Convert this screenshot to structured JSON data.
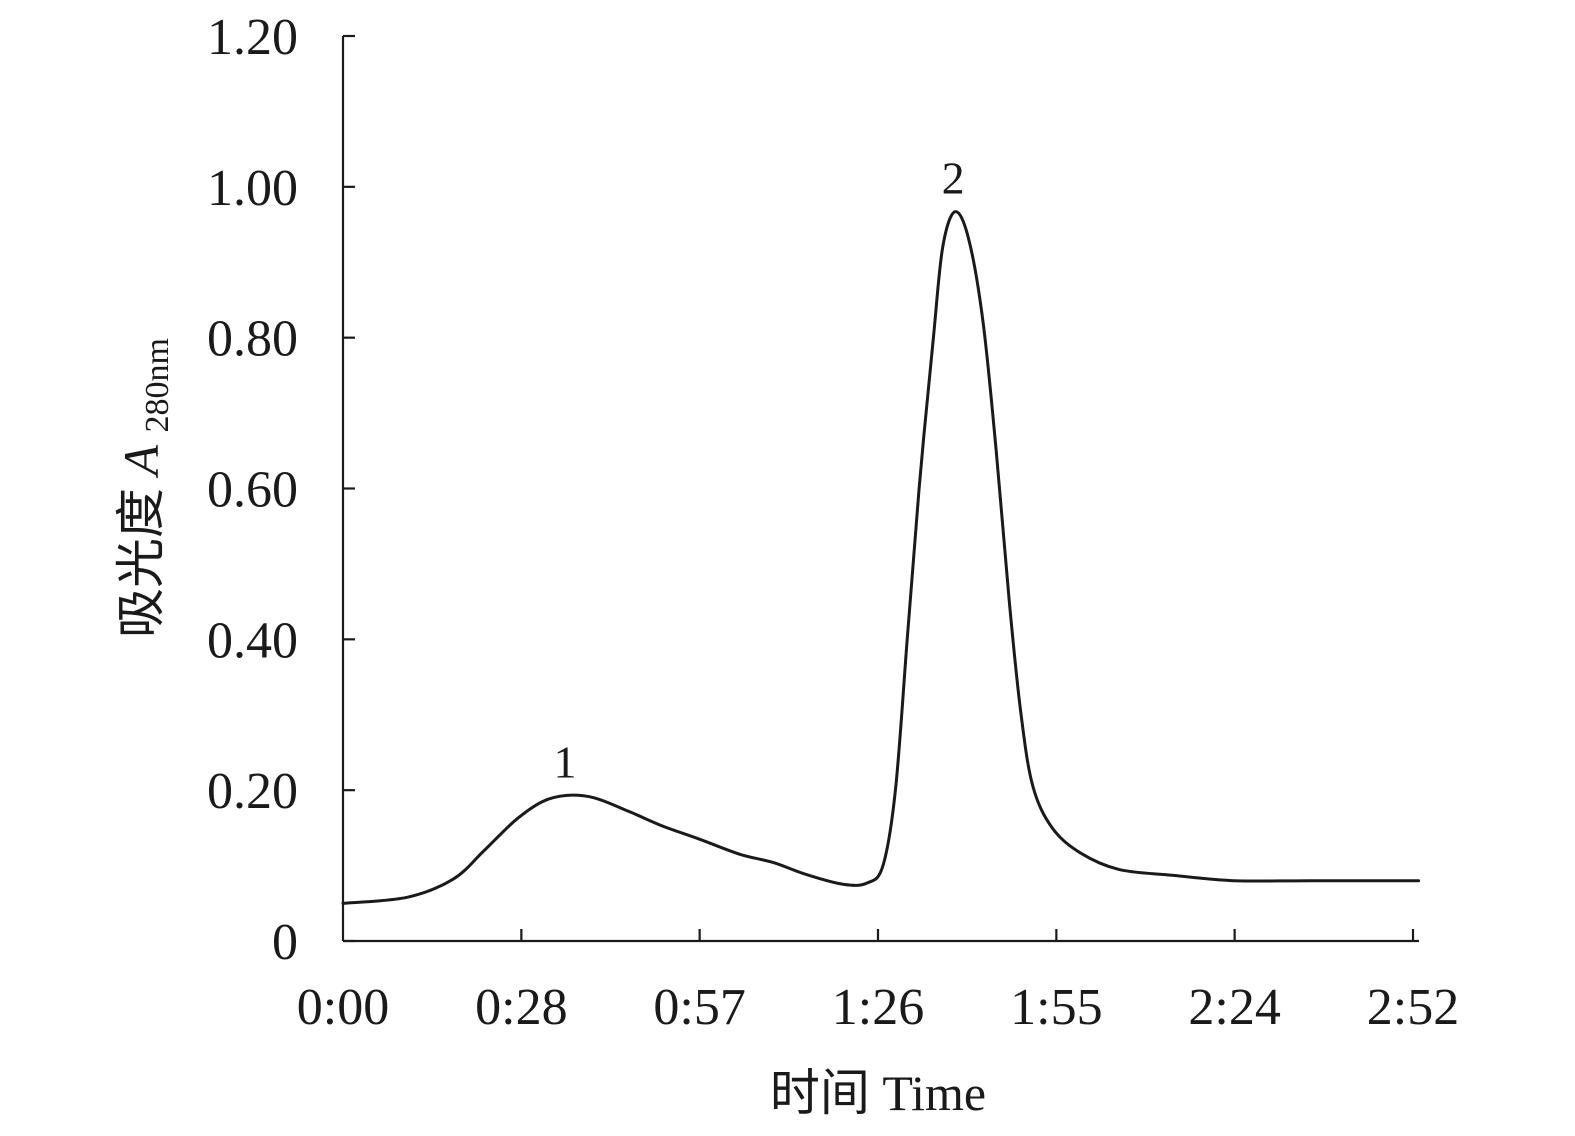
{
  "chart_data": {
    "type": "line",
    "title": "",
    "xlabel": "时间 Time",
    "ylabel": {
      "prefix": "吸光度 ",
      "symbol": "A",
      "subscript": "280nm"
    },
    "x_unit": "minutes",
    "xlim": [
      0,
      172
    ],
    "ylim": [
      0,
      1.2
    ],
    "x_ticks": [
      {
        "value": 0,
        "label": "0:00"
      },
      {
        "value": 28.67,
        "label": "0:28"
      },
      {
        "value": 57.33,
        "label": "0:57"
      },
      {
        "value": 86,
        "label": "1:26"
      },
      {
        "value": 114.67,
        "label": "1:55"
      },
      {
        "value": 143.33,
        "label": "2:24"
      },
      {
        "value": 172,
        "label": "2:52"
      }
    ],
    "y_ticks": [
      {
        "value": 0,
        "label": "0"
      },
      {
        "value": 0.2,
        "label": "0.20"
      },
      {
        "value": 0.4,
        "label": "0.40"
      },
      {
        "value": 0.6,
        "label": "0.60"
      },
      {
        "value": 0.8,
        "label": "0.80"
      },
      {
        "value": 1.0,
        "label": "1.00"
      },
      {
        "value": 1.2,
        "label": "1.20"
      }
    ],
    "grid": false,
    "legend": "none",
    "series": [
      {
        "points": [
          [
            0,
            0.05
          ],
          [
            10.3,
            0.058
          ],
          [
            17.7,
            0.082
          ],
          [
            22.7,
            0.12
          ],
          [
            27.7,
            0.16
          ],
          [
            32.1,
            0.185
          ],
          [
            36.0,
            0.193
          ],
          [
            40.3,
            0.19
          ],
          [
            45.9,
            0.172
          ],
          [
            51.5,
            0.152
          ],
          [
            57.3,
            0.135
          ],
          [
            63.8,
            0.115
          ],
          [
            69.2,
            0.104
          ],
          [
            74.5,
            0.088
          ],
          [
            80.5,
            0.075
          ],
          [
            84.3,
            0.077
          ],
          [
            86.8,
            0.1
          ],
          [
            88.8,
            0.2
          ],
          [
            90.7,
            0.4
          ],
          [
            92.6,
            0.6
          ],
          [
            94.9,
            0.8
          ],
          [
            96.4,
            0.92
          ],
          [
            98.4,
            0.967
          ],
          [
            100.6,
            0.93
          ],
          [
            102.9,
            0.82
          ],
          [
            105.0,
            0.65
          ],
          [
            107.1,
            0.45
          ],
          [
            109.0,
            0.3
          ],
          [
            110.9,
            0.205
          ],
          [
            114.0,
            0.15
          ],
          [
            118.5,
            0.117
          ],
          [
            124.7,
            0.095
          ],
          [
            133.5,
            0.087
          ],
          [
            143.2,
            0.08
          ],
          [
            155.5,
            0.08
          ],
          [
            172.9,
            0.08
          ]
        ]
      }
    ],
    "annotations": [
      {
        "text": "1",
        "x": 36.0,
        "y": 0.193
      },
      {
        "text": "2",
        "x": 98.4,
        "y": 0.967
      }
    ]
  }
}
